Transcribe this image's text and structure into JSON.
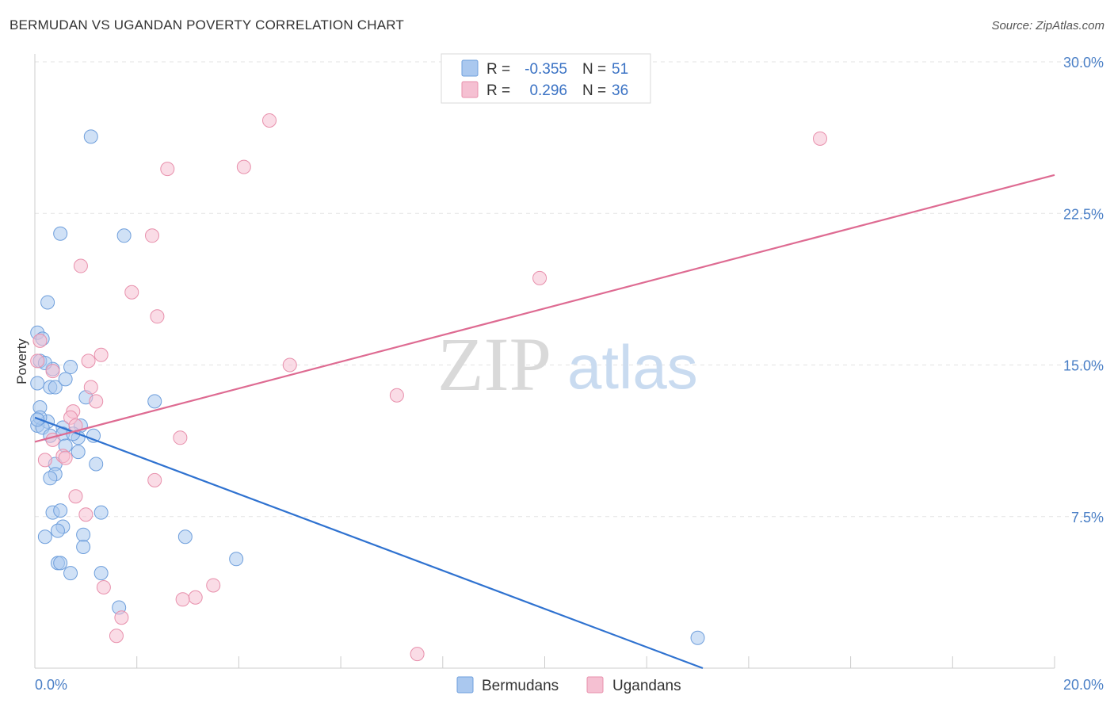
{
  "header": {
    "title": "BERMUDAN VS UGANDAN POVERTY CORRELATION CHART",
    "source": "Source: ZipAtlas.com"
  },
  "watermark": {
    "zip": "ZIP",
    "atlas": "atlas"
  },
  "chart_data": {
    "type": "scatter",
    "title": "BERMUDAN VS UGANDAN POVERTY CORRELATION CHART",
    "xlabel": "",
    "ylabel": "Poverty",
    "xlim": [
      0,
      20
    ],
    "ylim": [
      0,
      31
    ],
    "x_tick_labels": [
      {
        "value": 0,
        "label": "0.0%"
      },
      {
        "value": 20,
        "label": "20.0%"
      }
    ],
    "y_tick_labels": [
      {
        "value": 7.5,
        "label": "7.5%"
      },
      {
        "value": 15,
        "label": "15.0%"
      },
      {
        "value": 22.5,
        "label": "22.5%"
      },
      {
        "value": 30,
        "label": "30.0%"
      }
    ],
    "legend": {
      "placement": "top-center",
      "rows": [
        {
          "r_label": "R =",
          "r_value": "-0.355",
          "n_label": "N =",
          "n_value": "51"
        },
        {
          "r_label": "R =",
          "r_value": "0.296",
          "n_label": "N =",
          "n_value": "36"
        }
      ]
    },
    "bottom_legend": [
      "Bermudans",
      "Ugandans"
    ],
    "series": [
      {
        "name": "Bermudans",
        "color": "#6f9fdc",
        "fill": "#aac8ef",
        "line_color": "#2f72d0",
        "trend": {
          "x": [
            0,
            13.1
          ],
          "y": [
            12.4,
            0
          ]
        },
        "points": [
          [
            1.1,
            26.3
          ],
          [
            0.5,
            21.5
          ],
          [
            1.75,
            21.4
          ],
          [
            0.25,
            18.1
          ],
          [
            0.05,
            16.6
          ],
          [
            0.15,
            16.3
          ],
          [
            0.1,
            15.2
          ],
          [
            0.35,
            14.8
          ],
          [
            0.7,
            14.9
          ],
          [
            0.05,
            14.1
          ],
          [
            0.3,
            13.9
          ],
          [
            0.4,
            13.9
          ],
          [
            0.6,
            14.3
          ],
          [
            1.0,
            13.4
          ],
          [
            2.35,
            13.2
          ],
          [
            0.1,
            12.9
          ],
          [
            0.25,
            12.2
          ],
          [
            0.05,
            12.0
          ],
          [
            0.15,
            11.9
          ],
          [
            0.55,
            11.9
          ],
          [
            0.9,
            12.0
          ],
          [
            0.3,
            11.5
          ],
          [
            0.55,
            11.6
          ],
          [
            0.85,
            11.4
          ],
          [
            1.15,
            11.5
          ],
          [
            0.6,
            11.0
          ],
          [
            0.85,
            10.7
          ],
          [
            0.4,
            10.1
          ],
          [
            1.2,
            10.1
          ],
          [
            0.4,
            9.6
          ],
          [
            0.3,
            9.4
          ],
          [
            1.3,
            7.7
          ],
          [
            0.35,
            7.7
          ],
          [
            0.5,
            7.8
          ],
          [
            0.55,
            7.0
          ],
          [
            0.45,
            6.8
          ],
          [
            0.2,
            6.5
          ],
          [
            0.95,
            6.6
          ],
          [
            0.95,
            6.0
          ],
          [
            2.95,
            6.5
          ],
          [
            3.95,
            5.4
          ],
          [
            0.45,
            5.2
          ],
          [
            0.5,
            5.2
          ],
          [
            0.7,
            4.7
          ],
          [
            1.3,
            4.7
          ],
          [
            1.65,
            3.0
          ],
          [
            13.0,
            1.5
          ],
          [
            0.1,
            12.4
          ],
          [
            0.2,
            15.1
          ],
          [
            0.75,
            11.6
          ],
          [
            0.05,
            12.3
          ]
        ]
      },
      {
        "name": "Ugandans",
        "color": "#e890ac",
        "fill": "#f5c0d2",
        "line_color": "#de6b92",
        "trend": {
          "x": [
            0,
            20
          ],
          "y": [
            11.2,
            24.4
          ]
        },
        "points": [
          [
            4.6,
            27.1
          ],
          [
            15.4,
            26.2
          ],
          [
            2.6,
            24.7
          ],
          [
            4.1,
            24.8
          ],
          [
            2.3,
            21.4
          ],
          [
            0.9,
            19.9
          ],
          [
            1.9,
            18.6
          ],
          [
            9.9,
            19.3
          ],
          [
            2.4,
            17.4
          ],
          [
            0.1,
            16.2
          ],
          [
            1.3,
            15.5
          ],
          [
            1.05,
            15.2
          ],
          [
            5.0,
            15.0
          ],
          [
            0.05,
            15.2
          ],
          [
            0.35,
            14.7
          ],
          [
            1.1,
            13.9
          ],
          [
            7.1,
            13.5
          ],
          [
            1.2,
            13.2
          ],
          [
            0.75,
            12.7
          ],
          [
            0.7,
            12.4
          ],
          [
            0.8,
            12.0
          ],
          [
            2.85,
            11.4
          ],
          [
            0.35,
            11.3
          ],
          [
            0.55,
            10.5
          ],
          [
            0.2,
            10.3
          ],
          [
            0.6,
            10.4
          ],
          [
            2.35,
            9.3
          ],
          [
            0.8,
            8.5
          ],
          [
            1.0,
            7.6
          ],
          [
            1.35,
            4.0
          ],
          [
            3.5,
            4.1
          ],
          [
            3.15,
            3.5
          ],
          [
            2.9,
            3.4
          ],
          [
            1.7,
            2.5
          ],
          [
            1.6,
            1.6
          ],
          [
            7.5,
            0.7
          ]
        ]
      }
    ]
  }
}
